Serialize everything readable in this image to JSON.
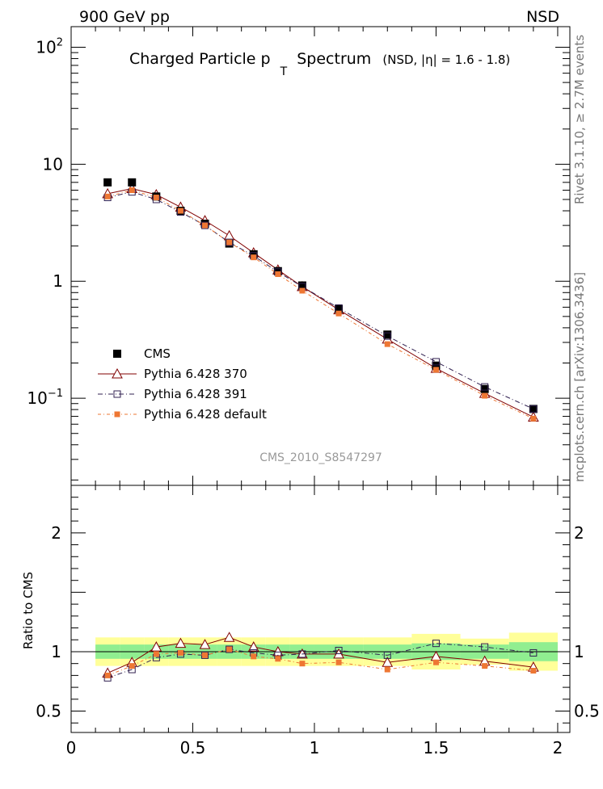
{
  "header": {
    "left_label": "900 GeV pp",
    "right_label": "NSD"
  },
  "side": {
    "rivet_label": "Rivet 3.1.10, ≥ 2.7M events",
    "mcplots_label": "mcplots.cern.ch [arXiv:1306.3436]"
  },
  "watermark": "CMS_2010_S8547297",
  "chart_data": [
    {
      "type": "scatter",
      "title": "Charged Particle p",
      "title_subscript": "T",
      "title_suffix": "Spectrum",
      "subtitle": "(NSD, |η| = 1.6 - 1.8)",
      "xlabel": "",
      "ylabel": "",
      "xlim": [
        0,
        2.05
      ],
      "ylim": [
        0.018,
        150
      ],
      "yscale": "log",
      "ytick_labels": [
        {
          "value": 100,
          "base": "10",
          "exp": "2"
        },
        {
          "value": 10,
          "base": "10",
          "exp": ""
        },
        {
          "value": 1,
          "base": "1",
          "exp": ""
        },
        {
          "value": 0.1,
          "base": "10",
          "exp": "−1"
        }
      ],
      "legend_position": "bottom-left",
      "x": [
        0.15,
        0.25,
        0.35,
        0.45,
        0.55,
        0.65,
        0.75,
        0.85,
        0.95,
        1.1,
        1.3,
        1.5,
        1.7,
        1.9
      ],
      "series": [
        {
          "name": "CMS",
          "color": "#000000",
          "marker": "filled-square",
          "values": [
            7.0,
            7.0,
            5.3,
            4.0,
            3.1,
            2.1,
            1.7,
            1.22,
            0.92,
            0.58,
            0.35,
            0.19,
            0.12,
            0.081
          ]
        },
        {
          "name": "Pythia 6.428 370",
          "color": "#800000",
          "marker": "open-triangle",
          "values": [
            5.6,
            6.2,
            5.5,
            4.3,
            3.3,
            2.45,
            1.75,
            1.25,
            0.9,
            0.57,
            0.32,
            0.18,
            0.11,
            0.069
          ]
        },
        {
          "name": "Pythia 6.428 391",
          "color": "#302050",
          "marker": "open-square",
          "values": [
            5.2,
            5.8,
            5.0,
            3.9,
            3.0,
            2.15,
            1.65,
            1.2,
            0.9,
            0.59,
            0.34,
            0.205,
            0.125,
            0.081
          ]
        },
        {
          "name": "Pythia 6.428 default",
          "color": "#ee7733",
          "marker": "filled-small-square",
          "values": [
            5.3,
            6.0,
            5.2,
            4.0,
            3.0,
            2.15,
            1.6,
            1.15,
            0.83,
            0.53,
            0.29,
            0.175,
            0.105,
            0.067
          ]
        }
      ]
    },
    {
      "type": "line",
      "title": "",
      "xlabel": "",
      "ylabel": "Ratio to CMS",
      "xlim": [
        0,
        2.05
      ],
      "ylim": [
        0.32,
        2.4
      ],
      "yticks": [
        0.5,
        1,
        2
      ],
      "ytick_labels": [
        "0.5",
        "1",
        "2"
      ],
      "xticks": [
        0,
        0.5,
        1,
        1.5,
        2
      ],
      "xtick_labels": [
        "0",
        "0.5",
        "1",
        "1.5",
        "2"
      ],
      "x": [
        0.15,
        0.25,
        0.35,
        0.45,
        0.55,
        0.65,
        0.75,
        0.85,
        0.95,
        1.1,
        1.3,
        1.5,
        1.7,
        1.9
      ],
      "bands": {
        "x_edges": [
          0.1,
          0.2,
          0.3,
          0.4,
          0.5,
          0.6,
          0.7,
          0.8,
          0.9,
          1.0,
          1.2,
          1.4,
          1.6,
          1.8,
          2.0
        ],
        "stat_color": "#90ee90",
        "syst_color": "#ffff99",
        "stat_half_width": [
          0.06,
          0.06,
          0.06,
          0.06,
          0.06,
          0.06,
          0.06,
          0.06,
          0.06,
          0.06,
          0.06,
          0.07,
          0.06,
          0.08
        ],
        "total_half_width": [
          0.12,
          0.12,
          0.12,
          0.12,
          0.12,
          0.12,
          0.12,
          0.12,
          0.12,
          0.12,
          0.12,
          0.15,
          0.11,
          0.16
        ]
      },
      "series": [
        {
          "name": "Pythia 6.428 370",
          "color": "#800000",
          "values": [
            0.82,
            0.91,
            1.04,
            1.07,
            1.06,
            1.12,
            1.04,
            1.0,
            0.98,
            0.98,
            0.91,
            0.96,
            0.92,
            0.87
          ]
        },
        {
          "name": "Pythia 6.428 391",
          "color": "#302050",
          "values": [
            0.78,
            0.85,
            0.95,
            0.98,
            0.97,
            1.02,
            0.99,
            0.97,
            0.98,
            1.01,
            0.97,
            1.07,
            1.04,
            0.99
          ]
        },
        {
          "name": "Pythia 6.428 default",
          "color": "#ee7733",
          "values": [
            0.8,
            0.88,
            0.98,
            0.99,
            0.97,
            1.02,
            0.96,
            0.94,
            0.9,
            0.91,
            0.85,
            0.91,
            0.88,
            0.84
          ]
        }
      ]
    }
  ]
}
